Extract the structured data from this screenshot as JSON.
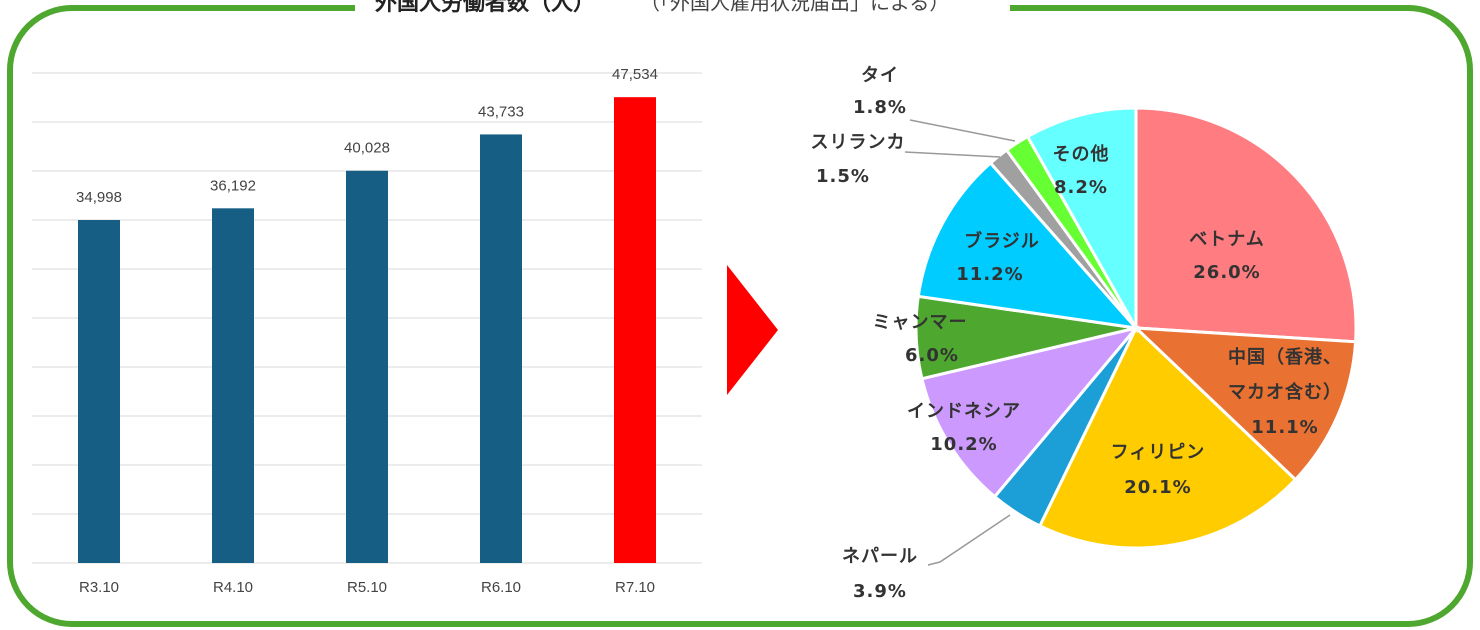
{
  "title": "外国人労働者数（人）",
  "subtitle": "（「外国人雇用状況届出」による）",
  "chart_data": [
    {
      "type": "bar",
      "categories": [
        "R3.10",
        "R4.10",
        "R5.10",
        "R6.10",
        "R7.10"
      ],
      "values": [
        34998,
        36192,
        40028,
        43733,
        47534
      ],
      "value_labels": [
        "34,998",
        "36,192",
        "40,028",
        "43,733",
        "47,534"
      ],
      "colors": [
        "#165e83",
        "#165e83",
        "#165e83",
        "#165e83",
        "#ff0000"
      ],
      "ylim": [
        0,
        50000
      ],
      "yticks": [
        0,
        5000,
        10000,
        15000,
        20000,
        25000,
        30000,
        35000,
        40000,
        45000,
        50000
      ],
      "grid": true
    },
    {
      "type": "pie",
      "categories": [
        "ベトナム",
        "中国（香港、\nマカオ含む）",
        "フィリピン",
        "ネパール",
        "インドネシア",
        "ミャンマー",
        "ブラジル",
        "スリランカ",
        "タイ",
        "その他"
      ],
      "values": [
        26.0,
        11.1,
        20.1,
        3.9,
        10.2,
        6.0,
        11.2,
        1.5,
        1.8,
        8.2
      ],
      "value_labels": [
        "26.0%",
        "11.1%",
        "20.1%",
        "3.9%",
        "10.2%",
        "6.0%",
        "11.2%",
        "1.5%",
        "1.8%",
        "8.2%"
      ],
      "colors": [
        "#ff7c80",
        "#e97132",
        "#ffcc00",
        "#1b9fd6",
        "#cc99ff",
        "#4ea72e",
        "#00ccff",
        "#a0a0a0",
        "#66ff33",
        "#66ffff"
      ]
    }
  ]
}
